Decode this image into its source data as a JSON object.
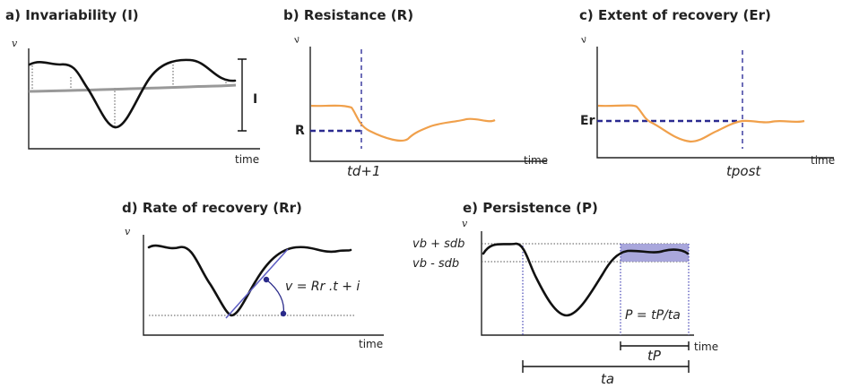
{
  "panels": {
    "a": {
      "title": "a) Invariability (I)",
      "y": "v",
      "x": "time",
      "marker": "I"
    },
    "b": {
      "title": "b) Resistance (R)",
      "y": "v",
      "x": "time",
      "marker": "R",
      "tick": "td+1"
    },
    "c": {
      "title": "c) Extent of recovery (Er)",
      "y": "v",
      "x": "time",
      "marker": "Er",
      "tick": "tpost"
    },
    "d": {
      "title": "d) Rate of recovery (Rr)",
      "y": "v",
      "x": "time",
      "equation": "v = Rr .t + i"
    },
    "e": {
      "title": "e) Persistence (P)",
      "y": "v",
      "x": "time",
      "upper": "vb + sdb",
      "lower": "vb - sdb",
      "equation": "P = tP/ta",
      "tp": "tP",
      "ta": "ta"
    }
  },
  "colors": {
    "series": "#111111",
    "baseline": "#999999",
    "orange": "#f0a04b",
    "blue": "#2a2a90",
    "band": "#9a98d6"
  }
}
